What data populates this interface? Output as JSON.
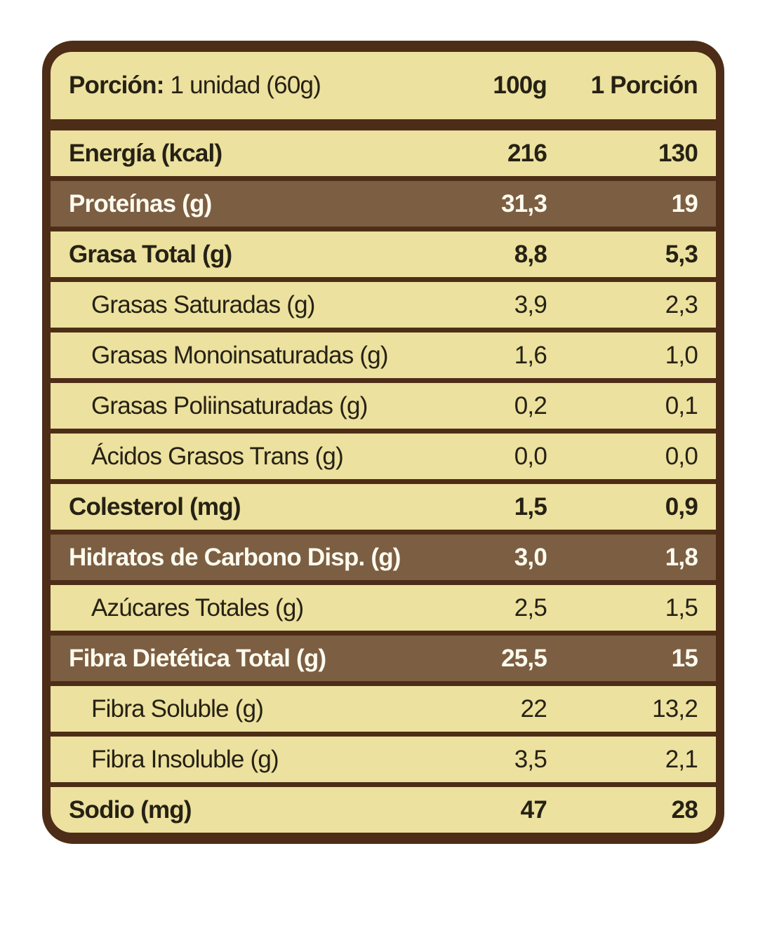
{
  "table": {
    "colors": {
      "border": "#4D2D17",
      "cream": "#ECE19E",
      "brown": "#7C5E42",
      "ink": "#262114",
      "light": "#FCFBEF"
    },
    "header": {
      "label_bold": "Porción:",
      "label_rest": " 1 unidad (60g)",
      "col1": "100g",
      "col2": "1 Porción"
    },
    "rows": [
      {
        "label": "Energía (kcal)",
        "v100": "216",
        "vp": "130",
        "style": "bold"
      },
      {
        "label": "Proteínas (g)",
        "v100": "31,3",
        "vp": "19",
        "style": "highlight"
      },
      {
        "label": "Grasa Total (g)",
        "v100": "8,8",
        "vp": "5,3",
        "style": "bold"
      },
      {
        "label": "Grasas Saturadas (g)",
        "v100": "3,9",
        "vp": "2,3",
        "style": "sub"
      },
      {
        "label": "Grasas Monoinsaturadas (g)",
        "v100": "1,6",
        "vp": "1,0",
        "style": "sub"
      },
      {
        "label": "Grasas Poliinsaturadas (g)",
        "v100": "0,2",
        "vp": "0,1",
        "style": "sub"
      },
      {
        "label": "Ácidos Grasos Trans (g)",
        "v100": "0,0",
        "vp": "0,0",
        "style": "sub"
      },
      {
        "label": "Colesterol (mg)",
        "v100": "1,5",
        "vp": "0,9",
        "style": "bold"
      },
      {
        "label": "Hidratos de Carbono Disp. (g)",
        "v100": "3,0",
        "vp": "1,8",
        "style": "highlight"
      },
      {
        "label": "Azúcares Totales (g)",
        "v100": "2,5",
        "vp": "1,5",
        "style": "sub"
      },
      {
        "label": "Fibra Dietética Total (g)",
        "v100": "25,5",
        "vp": "15",
        "style": "highlight"
      },
      {
        "label": "Fibra Soluble (g)",
        "v100": "22",
        "vp": "13,2",
        "style": "sub"
      },
      {
        "label": "Fibra Insoluble (g)",
        "v100": "3,5",
        "vp": "2,1",
        "style": "sub"
      },
      {
        "label": "Sodio (mg)",
        "v100": "47",
        "vp": "28",
        "style": "bold"
      }
    ]
  }
}
